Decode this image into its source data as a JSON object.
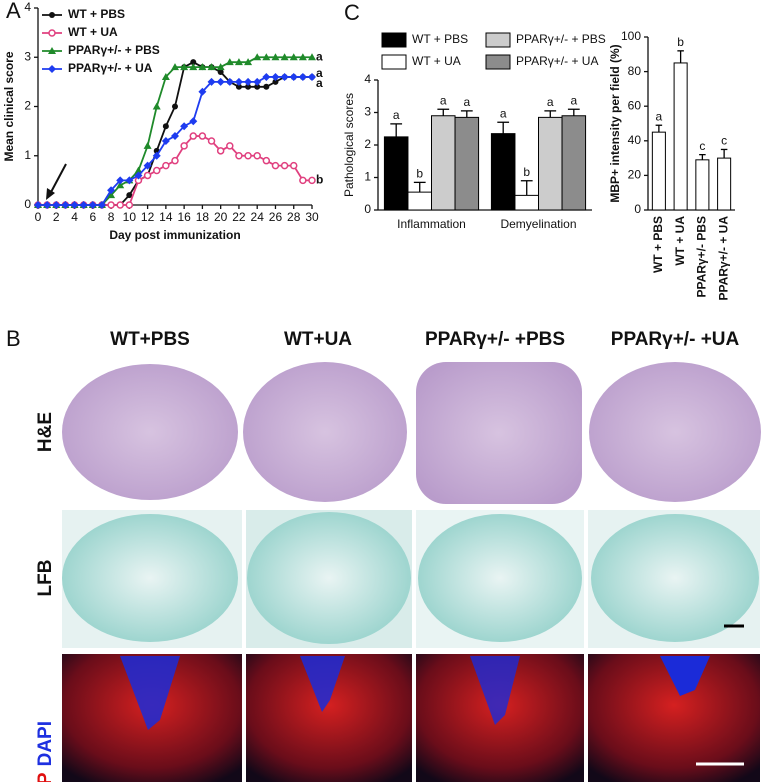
{
  "panel_labels": [
    "A",
    "B",
    "C"
  ],
  "chart_data": [
    {
      "type": "line",
      "y_label": "Mean clinical score",
      "x_label": "Day post immunization",
      "x": [
        0,
        1,
        2,
        3,
        4,
        5,
        6,
        7,
        8,
        9,
        10,
        11,
        12,
        13,
        14,
        15,
        16,
        17,
        18,
        19,
        20,
        21,
        22,
        23,
        24,
        25,
        26,
        27,
        28,
        29,
        30
      ],
      "xlim": [
        0,
        30
      ],
      "xticks": [
        0,
        2,
        4,
        6,
        8,
        10,
        12,
        14,
        16,
        18,
        20,
        22,
        24,
        26,
        28,
        30
      ],
      "ylim": [
        0,
        4
      ],
      "yticks": [
        0,
        1,
        2,
        3,
        4
      ],
      "series": [
        {
          "name": "WT + PBS",
          "color": "#111111",
          "marker": "circle",
          "end_label": "a",
          "values": [
            0,
            0,
            0,
            0,
            0,
            0,
            0,
            0,
            0,
            0,
            0.2,
            0.5,
            0.6,
            1.1,
            1.6,
            2.0,
            2.8,
            2.9,
            2.8,
            2.8,
            2.7,
            2.5,
            2.4,
            2.4,
            2.4,
            2.4,
            2.5,
            2.6,
            2.6,
            2.6,
            2.6
          ]
        },
        {
          "name": "WT + UA",
          "color": "#e0407f",
          "marker": "open-circle",
          "end_label": "b",
          "values": [
            0,
            0,
            0,
            0,
            0,
            0,
            0,
            0,
            0,
            0,
            0,
            0.5,
            0.6,
            0.7,
            0.8,
            0.9,
            1.2,
            1.4,
            1.4,
            1.3,
            1.1,
            1.2,
            1.0,
            1.0,
            1.0,
            0.9,
            0.8,
            0.8,
            0.8,
            0.5,
            0.5
          ]
        },
        {
          "name": "PPARγ+/- + PBS",
          "color": "#1f8a2a",
          "marker": "triangle",
          "end_label": "a",
          "values": [
            0,
            0,
            0,
            0,
            0,
            0,
            0,
            0,
            0.2,
            0.4,
            0.5,
            0.7,
            1.2,
            2.0,
            2.6,
            2.8,
            2.8,
            2.8,
            2.8,
            2.8,
            2.8,
            2.9,
            2.9,
            2.9,
            3.0,
            3.0,
            3.0,
            3.0,
            3.0,
            3.0,
            3.0
          ]
        },
        {
          "name": "PPARγ+/- + UA",
          "color": "#1e3cf0",
          "marker": "diamond",
          "end_label": "a",
          "values": [
            0,
            0,
            0,
            0,
            0,
            0,
            0,
            0,
            0.3,
            0.5,
            0.5,
            0.6,
            0.8,
            1.0,
            1.3,
            1.4,
            1.6,
            1.7,
            2.3,
            2.5,
            2.5,
            2.5,
            2.5,
            2.5,
            2.5,
            2.6,
            2.6,
            2.6,
            2.6,
            2.6,
            2.6
          ]
        }
      ]
    },
    {
      "type": "bar",
      "y_label": "Pathological scores",
      "categories": [
        "Inflammation",
        "Demyelination"
      ],
      "ylim": [
        0,
        4
      ],
      "yticks": [
        0,
        1,
        2,
        3,
        4
      ],
      "series": [
        {
          "name": "WT + PBS",
          "color": "#000000",
          "values": [
            2.25,
            2.35
          ],
          "errors": [
            0.4,
            0.35
          ],
          "letters": [
            "a",
            "a"
          ]
        },
        {
          "name": "WT + UA",
          "color": "#ffffff",
          "values": [
            0.55,
            0.45
          ],
          "errors": [
            0.3,
            0.45
          ],
          "letters": [
            "b",
            "b"
          ]
        },
        {
          "name": "PPARγ+/- + PBS",
          "color": "#cccccc",
          "values": [
            2.9,
            2.85
          ],
          "errors": [
            0.2,
            0.2
          ],
          "letters": [
            "a",
            "a"
          ]
        },
        {
          "name": "PPARγ+/- + UA",
          "color": "#8c8c8c",
          "values": [
            2.85,
            2.9
          ],
          "errors": [
            0.2,
            0.2
          ],
          "letters": [
            "a",
            "a"
          ]
        }
      ]
    },
    {
      "type": "bar",
      "y_label": "MBP+ intensity per field (%)",
      "categories": [
        "WT + PBS",
        "WT + UA",
        "PPARγ+/- PBS",
        "PPARγ+/- + UA"
      ],
      "ylim": [
        0,
        100
      ],
      "yticks": [
        0,
        20,
        40,
        60,
        80,
        100
      ],
      "series": [
        {
          "color": "#ffffff",
          "values": [
            45,
            85,
            29,
            30
          ],
          "errors": [
            4,
            7,
            3,
            5
          ],
          "letters": [
            "a",
            "b",
            "c",
            "c"
          ]
        }
      ]
    }
  ],
  "micrographs": {
    "columns": [
      "WT+PBS",
      "WT+UA",
      "PPARγ+/- +PBS",
      "PPARγ+/- +UA"
    ],
    "stains": {
      "he": "H&E",
      "lfb": "LFB",
      "mbp": "MBP",
      "dapi": "DAPI"
    }
  }
}
